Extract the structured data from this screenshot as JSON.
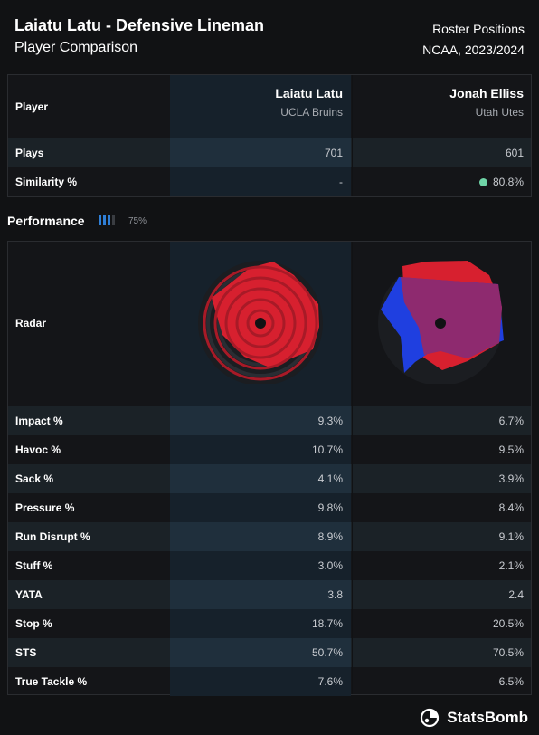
{
  "header": {
    "title": "Laiatu Latu - Defensive Lineman",
    "subtitle": "Player Comparison",
    "top_right_1": "Roster Positions",
    "top_right_2": "NCAA, 2023/2024"
  },
  "comparison": {
    "player_label": "Player",
    "players": [
      {
        "name": "Laiatu Latu",
        "team": "UCLA Bruins"
      },
      {
        "name": "Jonah Elliss",
        "team": "Utah Utes"
      }
    ],
    "rows": [
      {
        "label": "Plays",
        "values": [
          "701",
          "601"
        ]
      },
      {
        "label": "Similarity %",
        "values": [
          "-",
          "80.8%"
        ]
      }
    ]
  },
  "performance": {
    "label": "Performance",
    "percent": "75%",
    "level": 0.75
  },
  "radar_label": "Radar",
  "chart_data": {
    "type": "table",
    "metrics": [
      "Impact %",
      "Havoc %",
      "Sack %",
      "Pressure %",
      "Run Disrupt %",
      "Stuff %",
      "YATA",
      "Stop %",
      "STS",
      "True Tackle %"
    ],
    "series": [
      {
        "name": "Laiatu Latu",
        "values": [
          "9.3%",
          "10.7%",
          "4.1%",
          "9.8%",
          "8.9%",
          "3.0%",
          "3.8",
          "18.7%",
          "50.7%",
          "7.6%"
        ]
      },
      {
        "name": "Jonah Elliss",
        "values": [
          "6.7%",
          "9.5%",
          "3.9%",
          "8.4%",
          "9.1%",
          "2.1%",
          "2.4",
          "20.5%",
          "70.5%",
          "6.5%"
        ]
      }
    ]
  },
  "colors": {
    "latu": "#d7202f",
    "elliss": "#1f3fe0",
    "overlap": "#8e2a6f",
    "similarity_dot": "#6fd4a7"
  },
  "brand": "StatsBomb"
}
